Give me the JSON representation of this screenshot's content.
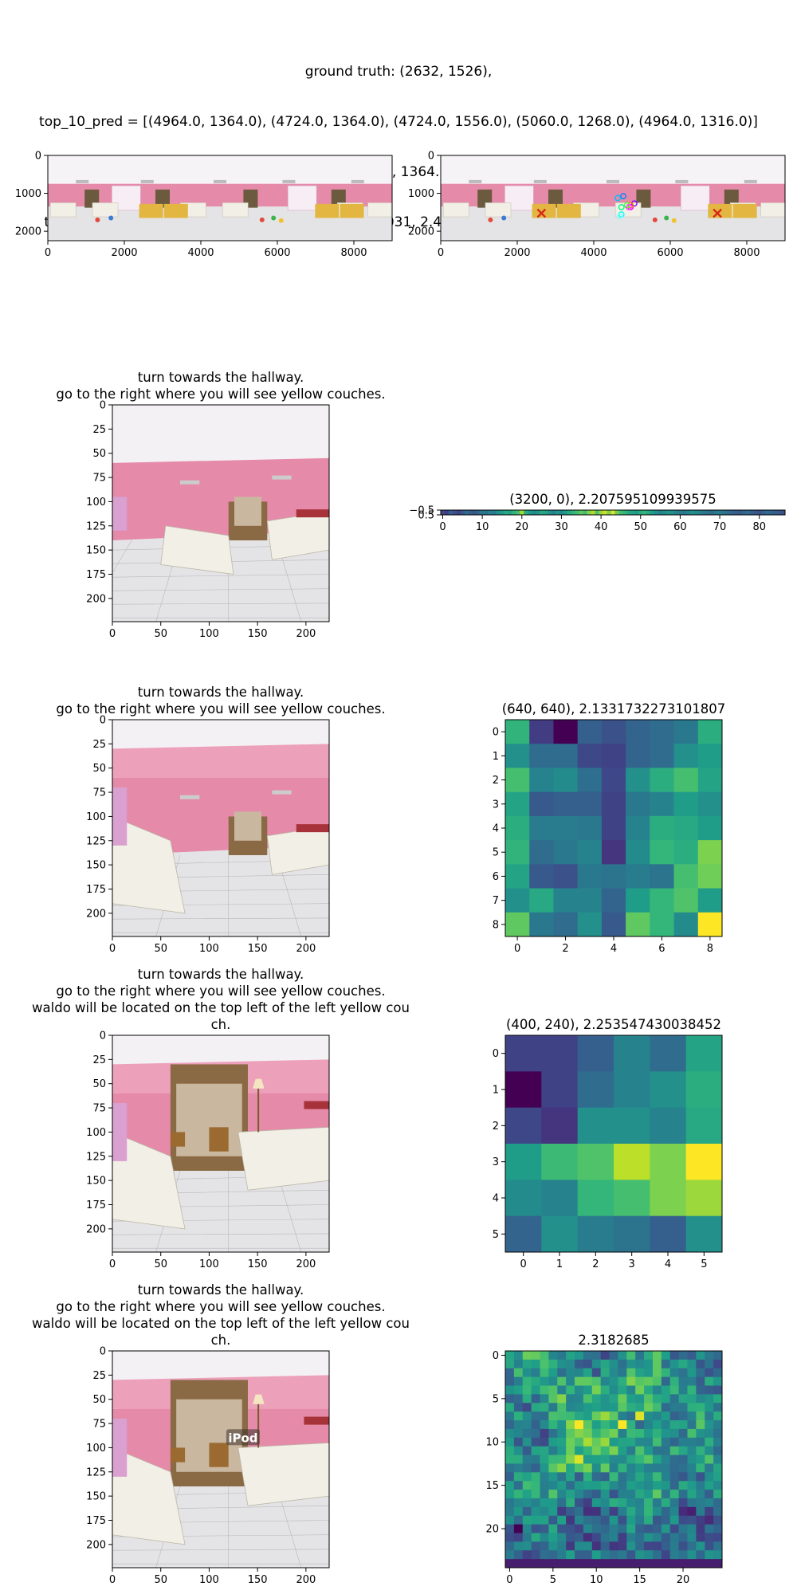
{
  "header": {
    "lines": [
      "ground truth: (2632, 1526),",
      "top_10_pred = [(4964.0, 1364.0), (4724.0, 1364.0), (4724.0, 1556.0), (5060.0, 1268.0), (4964.0, 1316.0)]",
      "[(4772.0, 1076.0), (4868.0, 1316.0), (4916.0, 1364.0), (4628.0, 1124.0), (4676.0, 1604.0)],",
      "top_10_similarities = [2.5193, 2.5123, 2.5065, 2.5031, 2.4905, 2.4758, 2.4744, 2.4714, 2.4672, 2.4666]"
    ]
  },
  "colors": {
    "wall_pink": "#e58aa8",
    "floor": "#e4e4e6",
    "couch": "#f2efe6",
    "yellow_couch": "#e2b640",
    "ceiling": "#f6f3f6",
    "gt_marker": "#d9261c",
    "viridis": [
      "#440154",
      "#482878",
      "#3e4989",
      "#31688e",
      "#26828e",
      "#1f9e89",
      "#35b779",
      "#6ece58",
      "#b5de2b",
      "#fde725"
    ]
  },
  "chart_data": [
    {
      "id": "pano_left",
      "type": "image",
      "title": "",
      "xlim": [
        0,
        9000
      ],
      "ylim": [
        2250,
        0
      ],
      "xticks": [
        0,
        2000,
        4000,
        6000,
        8000
      ],
      "yticks": [
        0,
        1000,
        2000
      ]
    },
    {
      "id": "pano_right",
      "type": "scatter",
      "title": "",
      "xlim": [
        0,
        9000
      ],
      "ylim": [
        2250,
        0
      ],
      "xticks": [
        0,
        2000,
        4000,
        6000,
        8000
      ],
      "yticks": [
        0,
        1000,
        2000
      ],
      "ground_truth": [
        [
          2632,
          1526
        ],
        [
          7232,
          1526
        ]
      ],
      "predictions": [
        [
          4964,
          1364
        ],
        [
          4724,
          1364
        ],
        [
          4724,
          1556
        ],
        [
          5060,
          1268
        ],
        [
          4964,
          1316
        ],
        [
          4772,
          1076
        ],
        [
          4868,
          1316
        ],
        [
          4916,
          1364
        ],
        [
          4628,
          1124
        ],
        [
          4676,
          1604
        ]
      ],
      "pred_colors": [
        "#ff00ff",
        "#00ff80",
        "#00ffff",
        "#8000ff",
        "#ff8000",
        "#0080ff",
        "#40ff40",
        "#ff40ff",
        "#00c0ff",
        "#80ffff"
      ]
    },
    {
      "id": "view1",
      "type": "image",
      "title": "turn towards the hallway.\ngo to the right where you will see yellow couches.",
      "xlim": [
        0,
        224
      ],
      "ylim": [
        224,
        0
      ],
      "xticks": [
        0,
        50,
        100,
        150,
        200
      ],
      "yticks": [
        0,
        25,
        50,
        75,
        100,
        125,
        150,
        175,
        200
      ]
    },
    {
      "id": "heat_strip",
      "type": "heatmap",
      "title": "(3200, 0), 2.207595109939575",
      "xlim": [
        -0.5,
        86.5
      ],
      "ylim": [
        0.5,
        -0.5
      ],
      "xticks": [
        0,
        10,
        20,
        30,
        40,
        50,
        60,
        70,
        80
      ],
      "yticks": [
        -0.5,
        0.5
      ],
      "ytick_labels": [
        "−0.5",
        "0.5"
      ],
      "rows": 1,
      "cols": 87,
      "values": [
        [
          0.22,
          0.18,
          0.3,
          0.25,
          0.2,
          0.28,
          0.35,
          0.3,
          0.27,
          0.33,
          0.4,
          0.38,
          0.45,
          0.42,
          0.5,
          0.55,
          0.6,
          0.58,
          0.65,
          0.7,
          0.86,
          0.62,
          0.55,
          0.48,
          0.52,
          0.6,
          0.58,
          0.5,
          0.45,
          0.52,
          0.48,
          0.55,
          0.6,
          0.66,
          0.7,
          0.75,
          0.7,
          0.82,
          0.88,
          0.72,
          0.85,
          0.92,
          0.8,
          0.95,
          0.78,
          0.7,
          0.66,
          0.6,
          0.58,
          0.55,
          0.62,
          0.66,
          0.6,
          0.55,
          0.5,
          0.45,
          0.48,
          0.52,
          0.5,
          0.45,
          0.42,
          0.4,
          0.45,
          0.5,
          0.48,
          0.44,
          0.4,
          0.38,
          0.35,
          0.4,
          0.42,
          0.38,
          0.35,
          0.33,
          0.3,
          0.28,
          0.32,
          0.35,
          0.3,
          0.28,
          0.25,
          0.3,
          0.35,
          0.32,
          0.3,
          0.28,
          0.25
        ]
      ]
    },
    {
      "id": "view2",
      "type": "image",
      "title": "turn towards the hallway.\ngo to the right where you will see yellow couches.",
      "xlim": [
        0,
        224
      ],
      "ylim": [
        224,
        0
      ],
      "xticks": [
        0,
        50,
        100,
        150,
        200
      ],
      "yticks": [
        0,
        25,
        50,
        75,
        100,
        125,
        150,
        175,
        200
      ]
    },
    {
      "id": "heat9",
      "type": "heatmap",
      "title": "(640, 640), 2.1331732273101807",
      "xlim": [
        -0.5,
        8.5
      ],
      "ylim": [
        8.5,
        -0.5
      ],
      "xticks": [
        0,
        2,
        4,
        6,
        8
      ],
      "yticks": [
        0,
        1,
        2,
        3,
        4,
        5,
        6,
        7,
        8
      ],
      "rows": 9,
      "cols": 9,
      "values": [
        [
          0.65,
          0.18,
          0.0,
          0.3,
          0.25,
          0.32,
          0.35,
          0.4,
          0.62
        ],
        [
          0.5,
          0.35,
          0.35,
          0.22,
          0.2,
          0.32,
          0.35,
          0.5,
          0.55
        ],
        [
          0.7,
          0.45,
          0.48,
          0.36,
          0.22,
          0.5,
          0.62,
          0.7,
          0.58
        ],
        [
          0.58,
          0.28,
          0.3,
          0.3,
          0.2,
          0.4,
          0.45,
          0.55,
          0.5
        ],
        [
          0.62,
          0.42,
          0.42,
          0.4,
          0.2,
          0.45,
          0.62,
          0.6,
          0.55
        ],
        [
          0.65,
          0.35,
          0.4,
          0.45,
          0.15,
          0.48,
          0.66,
          0.62,
          0.8
        ],
        [
          0.58,
          0.28,
          0.25,
          0.4,
          0.38,
          0.42,
          0.38,
          0.7,
          0.78
        ],
        [
          0.5,
          0.6,
          0.45,
          0.45,
          0.32,
          0.55,
          0.66,
          0.72,
          0.55
        ],
        [
          0.75,
          0.4,
          0.35,
          0.5,
          0.28,
          0.75,
          0.66,
          0.48,
          1.0
        ]
      ]
    },
    {
      "id": "view3",
      "type": "image",
      "title": "turn towards the hallway.\ngo to the right where you will see yellow couches.\nwaldo will be located on the top left of the left yellow cou\nch.",
      "xlim": [
        0,
        224
      ],
      "ylim": [
        224,
        0
      ],
      "xticks": [
        0,
        50,
        100,
        150,
        200
      ],
      "yticks": [
        0,
        25,
        50,
        75,
        100,
        125,
        150,
        175,
        200
      ]
    },
    {
      "id": "heat6",
      "type": "heatmap",
      "title": "(400, 240), 2.253547430038452",
      "xlim": [
        -0.5,
        5.5
      ],
      "ylim": [
        5.5,
        -0.5
      ],
      "xticks": [
        0,
        1,
        2,
        3,
        4,
        5
      ],
      "yticks": [
        0,
        1,
        2,
        3,
        4,
        5
      ],
      "rows": 6,
      "cols": 6,
      "values": [
        [
          0.2,
          0.2,
          0.3,
          0.45,
          0.35,
          0.58
        ],
        [
          0.0,
          0.2,
          0.35,
          0.45,
          0.5,
          0.62
        ],
        [
          0.22,
          0.15,
          0.5,
          0.5,
          0.45,
          0.6
        ],
        [
          0.55,
          0.68,
          0.72,
          0.9,
          0.8,
          1.0
        ],
        [
          0.48,
          0.45,
          0.66,
          0.7,
          0.8,
          0.85
        ],
        [
          0.32,
          0.5,
          0.42,
          0.38,
          0.3,
          0.5
        ]
      ]
    },
    {
      "id": "view4",
      "type": "image",
      "title": "turn towards the hallway.\ngo to the right where you will see yellow couches.\nwaldo will be located on the top left of the left yellow cou\nch.",
      "xlim": [
        0,
        224
      ],
      "ylim": [
        224,
        0
      ],
      "xticks": [
        0,
        50,
        100,
        150,
        200
      ],
      "yticks": [
        0,
        25,
        50,
        75,
        100,
        125,
        150,
        175,
        200
      ],
      "annotation": "iPod",
      "annotation_xy": [
        135,
        90
      ]
    },
    {
      "id": "heat25",
      "type": "heatmap",
      "title": "2.3182685",
      "xlim": [
        -0.5,
        24.5
      ],
      "ylim": [
        24.5,
        -0.5
      ],
      "xticks": [
        0,
        5,
        10,
        15,
        20
      ],
      "yticks": [
        0,
        5,
        10,
        15,
        20
      ],
      "rows": 25,
      "cols": 25,
      "seed": 1357
    }
  ]
}
